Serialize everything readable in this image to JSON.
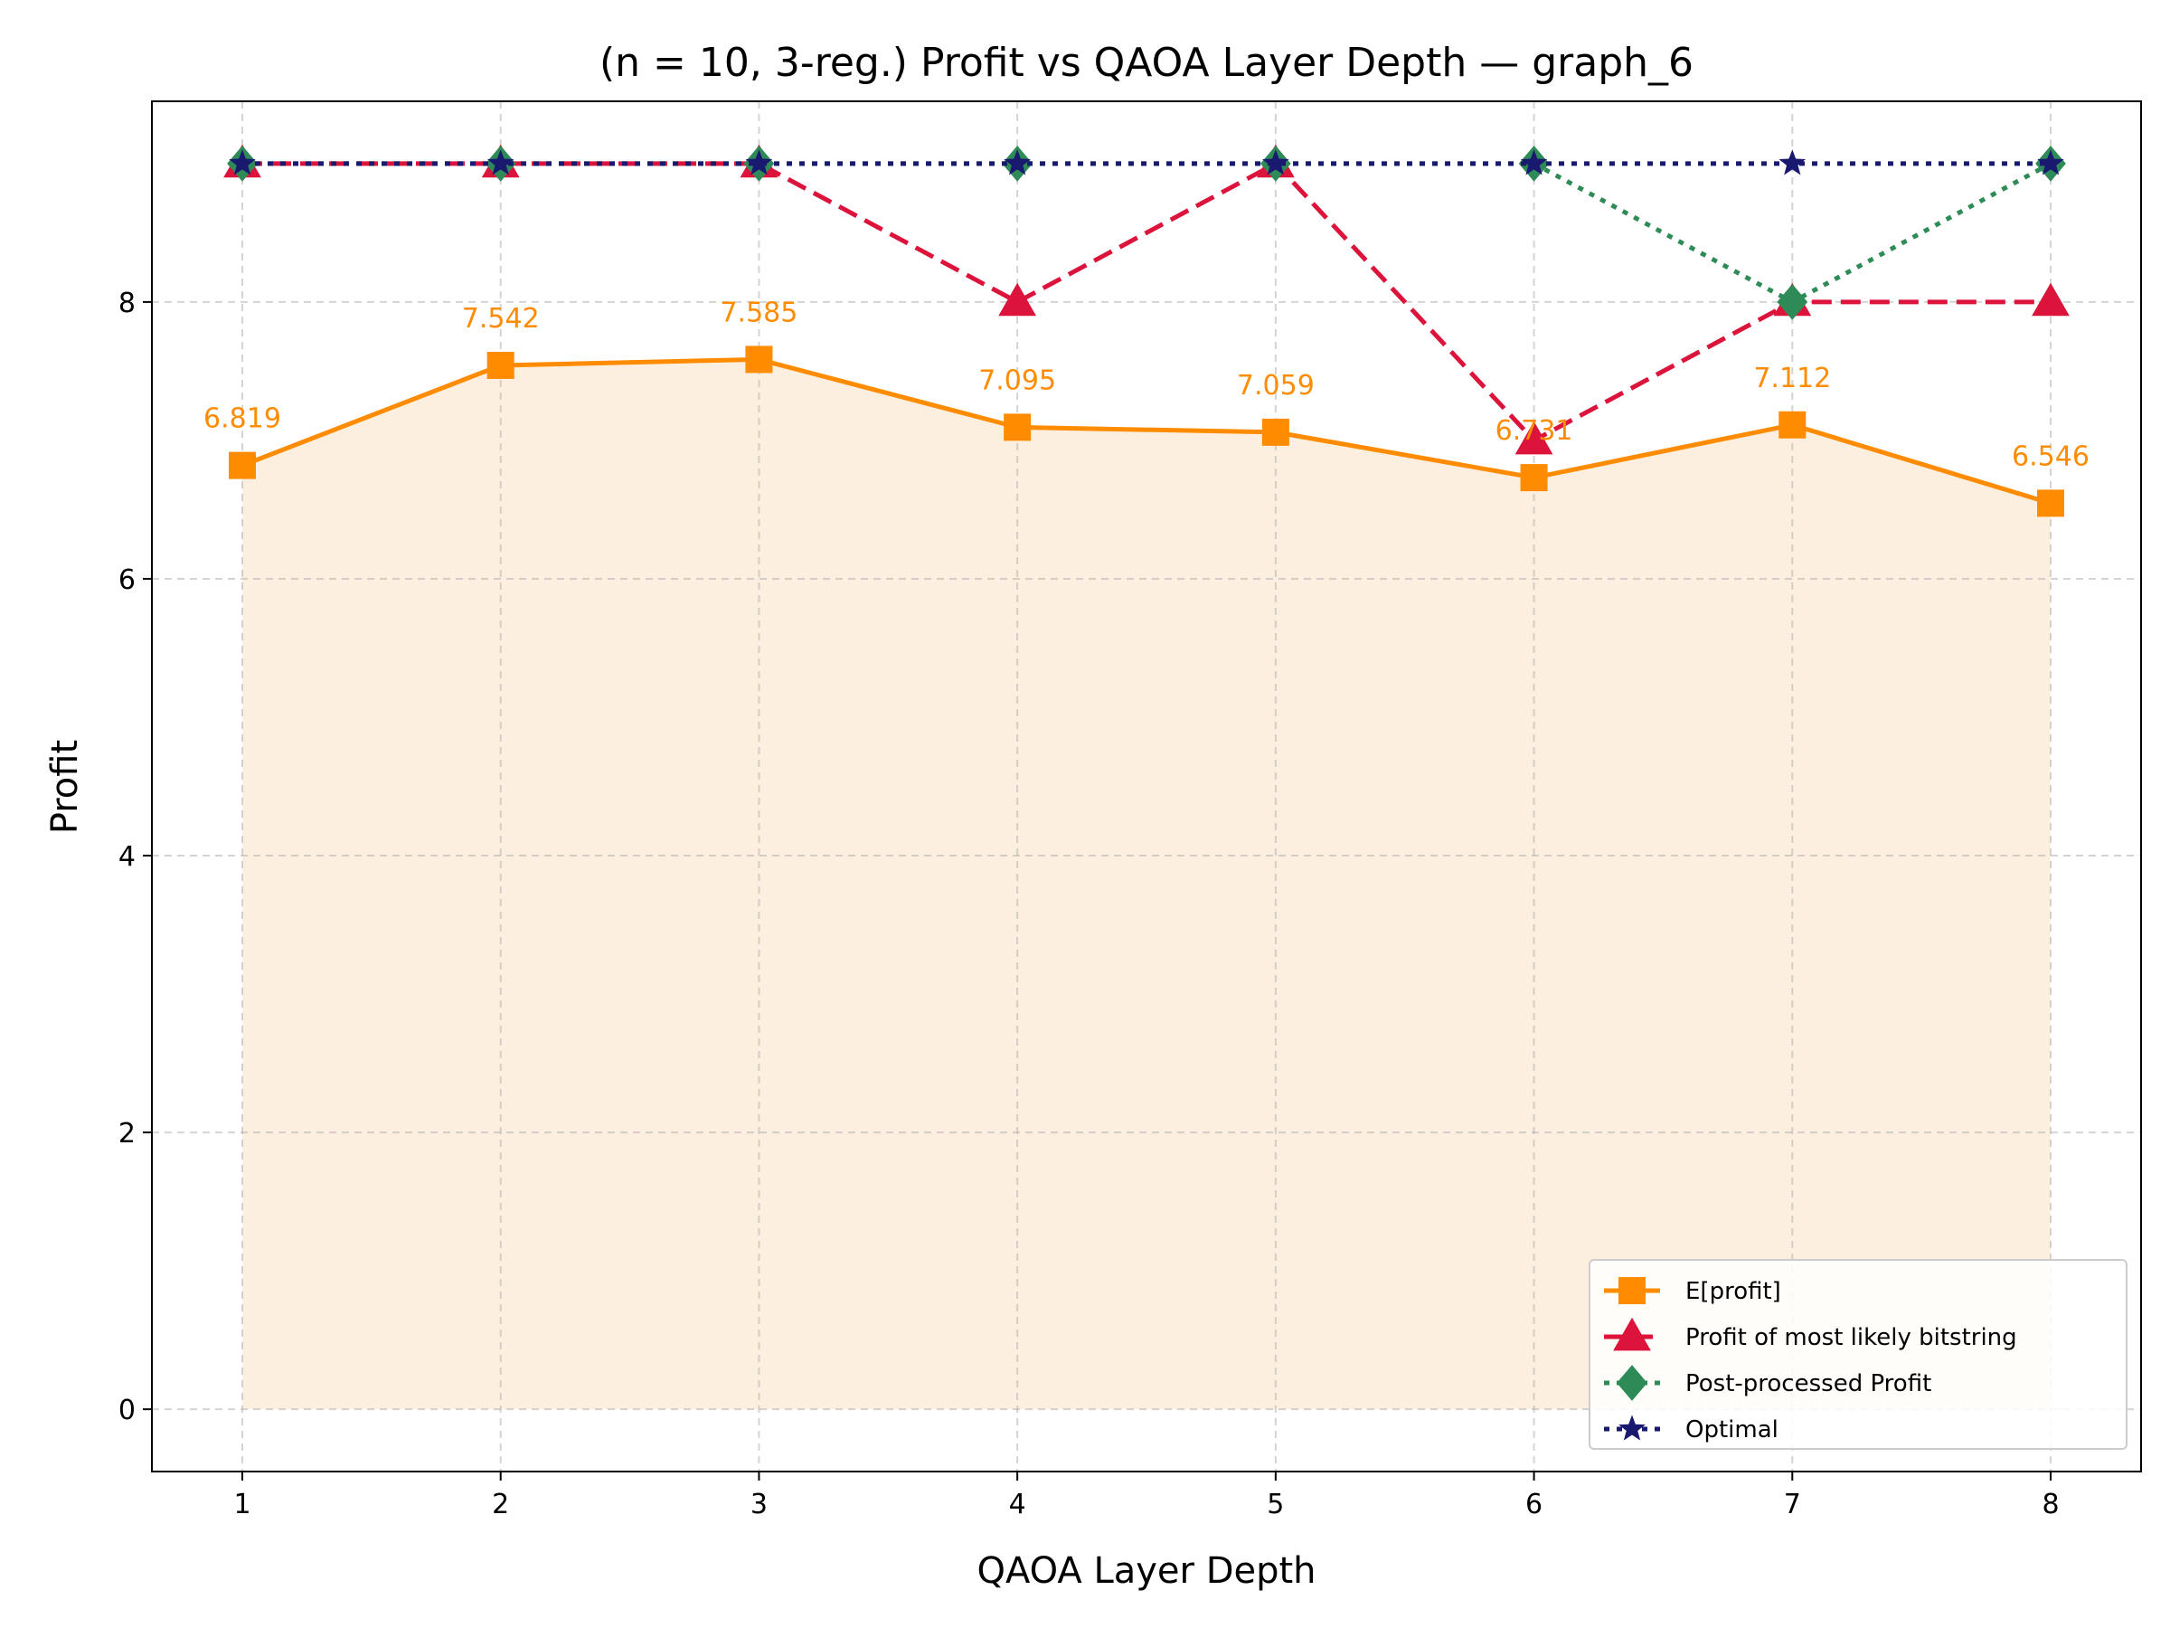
{
  "chart_data": {
    "type": "line",
    "title": "(n = 10, 3-reg.) Profit vs QAOA Layer Depth — graph_6",
    "xlabel": "QAOA Layer Depth",
    "ylabel": "Profit",
    "x": [
      1,
      2,
      3,
      4,
      5,
      6,
      7,
      8
    ],
    "xlim": [
      0.65,
      8.35
    ],
    "ylim": [
      -0.45,
      9.45
    ],
    "xticks": [
      "1",
      "2",
      "3",
      "4",
      "5",
      "6",
      "7",
      "8"
    ],
    "yticks": [
      "0",
      "2",
      "4",
      "6",
      "8"
    ],
    "grid": true,
    "legend_position": "lower-right",
    "series": [
      {
        "name": "E[profit]",
        "values": [
          6.819,
          7.542,
          7.585,
          7.095,
          7.059,
          6.731,
          7.112,
          6.546
        ],
        "color": "#ff8c00",
        "marker": "square",
        "line_style": "solid",
        "fill_to_zero": true,
        "fill_color": "#fdefdf",
        "data_labels": [
          "6.819",
          "7.542",
          "7.585",
          "7.095",
          "7.059",
          "6.731",
          "7.112",
          "6.546"
        ]
      },
      {
        "name": "Profit of most likely bitstring",
        "values": [
          9,
          9,
          9,
          8,
          9,
          7,
          8,
          8
        ],
        "color": "#dc143c",
        "marker": "triangle",
        "line_style": "dashed"
      },
      {
        "name": "Post-processed Profit",
        "values": [
          9,
          9,
          9,
          9,
          9,
          9,
          8,
          9
        ],
        "color": "#2e8b57",
        "marker": "diamond",
        "line_style": "dotted"
      },
      {
        "name": "Optimal",
        "values": [
          9,
          9,
          9,
          9,
          9,
          9,
          9,
          9
        ],
        "color": "#191970",
        "marker": "star",
        "line_style": "dotted"
      }
    ]
  }
}
